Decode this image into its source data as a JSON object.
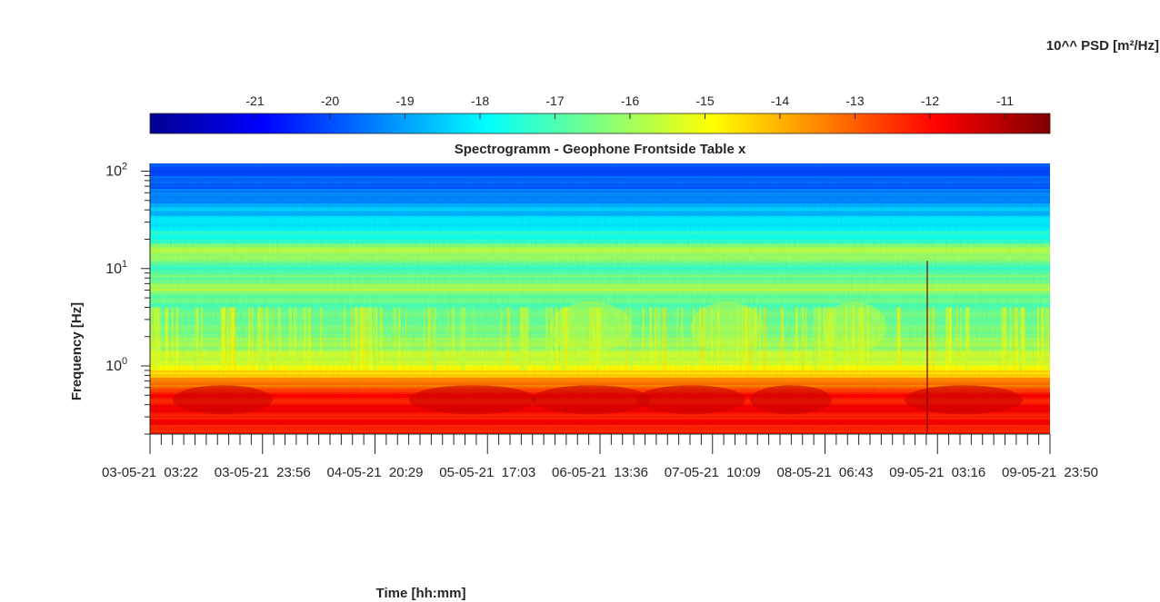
{
  "chart_data": {
    "type": "heatmap",
    "title": "Spectrogramm - Geophone Frontside Table x",
    "xlabel": "Time [hh:mm]",
    "ylabel": "Frequency [Hz]",
    "colorbar": {
      "label": "10^^ PSD [m²/Hz]",
      "ticks": [
        "-21",
        "-20",
        "-19",
        "-18",
        "-17",
        "-16",
        "-15",
        "-14",
        "-13",
        "-12",
        "-11"
      ],
      "tick_values": [
        -21,
        -20,
        -19,
        -18,
        -17,
        -16,
        -15,
        -14,
        -13,
        -12,
        -11
      ],
      "range": [
        -22.4,
        -10.4
      ],
      "colormap": "jet",
      "location": "top"
    },
    "y_scale": "log",
    "ylim": [
      0.2,
      120
    ],
    "y_ticks": [
      {
        "value": 1,
        "base": "10",
        "exp": "0"
      },
      {
        "value": 10,
        "base": "10",
        "exp": "1"
      },
      {
        "value": 100,
        "base": "10",
        "exp": "2"
      }
    ],
    "x_ticks": [
      "03-05-21  03:22",
      "03-05-21  23:56",
      "04-05-21  20:29",
      "05-05-21  17:03",
      "06-05-21  13:36",
      "07-05-21  10:09",
      "08-05-21  06:43",
      "09-05-21  03:16",
      "09-05-21  23:50"
    ],
    "psd_profile": [
      {
        "f": 0.2,
        "log_psd": -12.3
      },
      {
        "f": 0.3,
        "log_psd": -12.0
      },
      {
        "f": 0.5,
        "log_psd": -12.1
      },
      {
        "f": 0.8,
        "log_psd": -14.2
      },
      {
        "f": 1.0,
        "log_psd": -15.2
      },
      {
        "f": 2.0,
        "log_psd": -16.4
      },
      {
        "f": 5.0,
        "log_psd": -16.9
      },
      {
        "f": 6.0,
        "log_psd": -15.9
      },
      {
        "f": 10.0,
        "log_psd": -17.2
      },
      {
        "f": 15.0,
        "log_psd": -15.6
      },
      {
        "f": 20.0,
        "log_psd": -17.5
      },
      {
        "f": 40.0,
        "log_psd": -18.7
      },
      {
        "f": 60.0,
        "log_psd": -19.6
      },
      {
        "f": 120.0,
        "log_psd": -20.1
      }
    ],
    "grid": false
  }
}
